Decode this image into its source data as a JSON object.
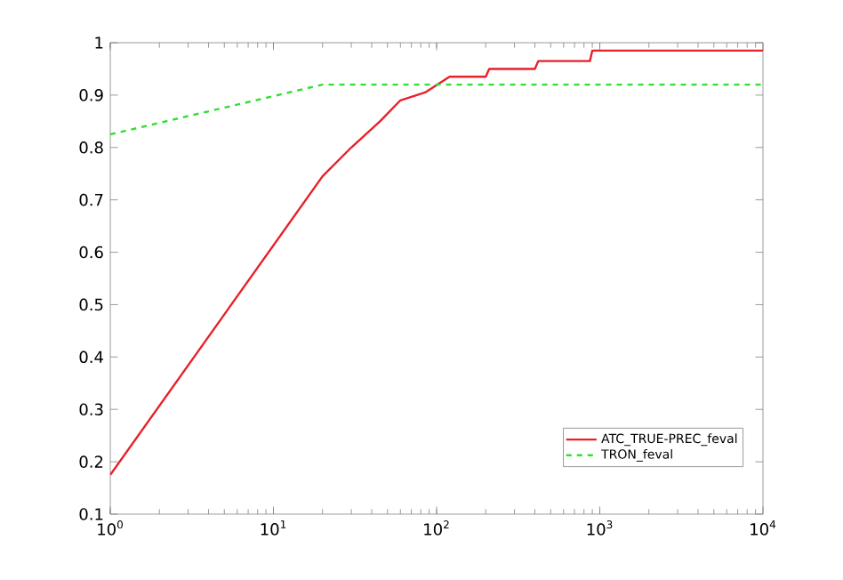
{
  "chart_data": {
    "type": "line",
    "log": "x",
    "xlim": [
      1,
      10000
    ],
    "ylim": [
      0.1,
      1
    ],
    "xticks": [
      {
        "value": 1,
        "label": "10$^{0}$"
      },
      {
        "value": 10,
        "label": "10$^{1}$"
      },
      {
        "value": 100,
        "label": "10$^{2}$"
      },
      {
        "value": 1000,
        "label": "10$^{3}$"
      },
      {
        "value": 10000,
        "label": "10$^{4}$"
      }
    ],
    "yticks": [
      0.1,
      0.2,
      0.3,
      0.4,
      0.5,
      0.6,
      0.7,
      0.8,
      0.9,
      1
    ],
    "grid": false,
    "legend": "bottom right",
    "marker": "none",
    "series": [
      {
        "name": "ATC_TRUE-PREC_feval",
        "color": "#e8202a",
        "line_style": "solid",
        "x": [
          1,
          20,
          30,
          45,
          60,
          85,
          120,
          200,
          210,
          400,
          420,
          870,
          900,
          10000
        ],
        "values": [
          0.175,
          0.745,
          0.8,
          0.85,
          0.89,
          0.905,
          0.935,
          0.935,
          0.95,
          0.95,
          0.965,
          0.965,
          0.985,
          0.985
        ]
      },
      {
        "name": "TRON_feval",
        "color": "#33dd33",
        "line_style": "dashed",
        "x": [
          1,
          20,
          10000
        ],
        "values": [
          0.825,
          0.92,
          0.92
        ]
      }
    ]
  }
}
